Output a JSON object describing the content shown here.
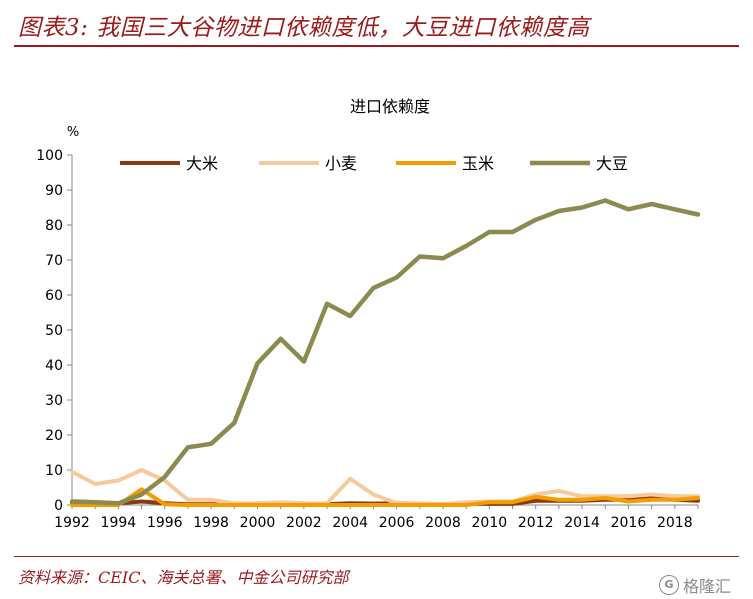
{
  "header": {
    "title": "图表3: 我国三大谷物进口依赖度低，大豆进口依赖度高"
  },
  "footer": {
    "source": "资料来源：CEIC、海关总署、中金公司研究部",
    "watermark_icon": "gelonghui-logo-icon",
    "watermark_text": "格隆汇"
  },
  "colors": {
    "accent": "#9b1b1b",
    "rice": "#8b3a0f",
    "wheat": "#f7c99b",
    "corn": "#f59c00",
    "soybean": "#8c8a4f"
  },
  "chart_data": {
    "type": "line",
    "title": "进口依赖度",
    "ylabel": "%",
    "xlabel": "",
    "ylim": [
      0,
      100
    ],
    "yticks": [
      0,
      10,
      20,
      30,
      40,
      50,
      60,
      70,
      80,
      90,
      100
    ],
    "xlim": [
      1992,
      2019
    ],
    "xticks": [
      1992,
      1994,
      1996,
      1998,
      2000,
      2002,
      2004,
      2006,
      2008,
      2010,
      2012,
      2014,
      2016,
      2018
    ],
    "grid": false,
    "legend_position": "top",
    "x": [
      1992,
      1993,
      1994,
      1995,
      1996,
      1997,
      1998,
      1999,
      2000,
      2001,
      2002,
      2003,
      2004,
      2005,
      2006,
      2007,
      2008,
      2009,
      2010,
      2011,
      2012,
      2013,
      2014,
      2015,
      2016,
      2017,
      2018,
      2019
    ],
    "series": [
      {
        "name": "大米",
        "color": "#8b3a0f",
        "values": [
          0.5,
          0.5,
          0.5,
          1.0,
          0.5,
          0.2,
          0.2,
          0.2,
          0.2,
          0.2,
          0.2,
          0.2,
          0.5,
          0.4,
          0.5,
          0.4,
          0.2,
          0.3,
          0.3,
          0.3,
          1.2,
          1.2,
          1.2,
          1.5,
          1.5,
          2.0,
          1.5,
          1.2
        ]
      },
      {
        "name": "小麦",
        "color": "#f7c99b",
        "values": [
          9.5,
          6.0,
          7.0,
          10.0,
          7.0,
          1.5,
          1.5,
          0.5,
          0.5,
          0.8,
          0.5,
          0.5,
          7.5,
          3.0,
          0.5,
          0.5,
          0.2,
          0.8,
          1.0,
          1.0,
          3.0,
          4.0,
          2.5,
          2.5,
          2.5,
          3.0,
          2.5,
          2.5
        ]
      },
      {
        "name": "玉米",
        "color": "#f59c00",
        "values": [
          0.0,
          0.0,
          0.0,
          4.5,
          0.2,
          0.0,
          0.0,
          0.0,
          0.0,
          0.0,
          0.0,
          0.0,
          0.0,
          0.0,
          0.0,
          0.0,
          0.0,
          0.0,
          0.8,
          0.8,
          2.3,
          1.5,
          1.5,
          2.0,
          1.0,
          1.5,
          1.5,
          2.0
        ]
      },
      {
        "name": "大豆",
        "color": "#8c8a4f",
        "values": [
          1.0,
          0.8,
          0.5,
          3.0,
          8.0,
          16.5,
          17.5,
          23.5,
          40.5,
          47.5,
          41.0,
          57.5,
          54.0,
          62.0,
          65.0,
          71.0,
          70.5,
          74.0,
          78.0,
          78.0,
          81.5,
          84.0,
          85.0,
          87.0,
          84.5,
          86.0,
          84.5,
          83.0
        ]
      }
    ]
  }
}
